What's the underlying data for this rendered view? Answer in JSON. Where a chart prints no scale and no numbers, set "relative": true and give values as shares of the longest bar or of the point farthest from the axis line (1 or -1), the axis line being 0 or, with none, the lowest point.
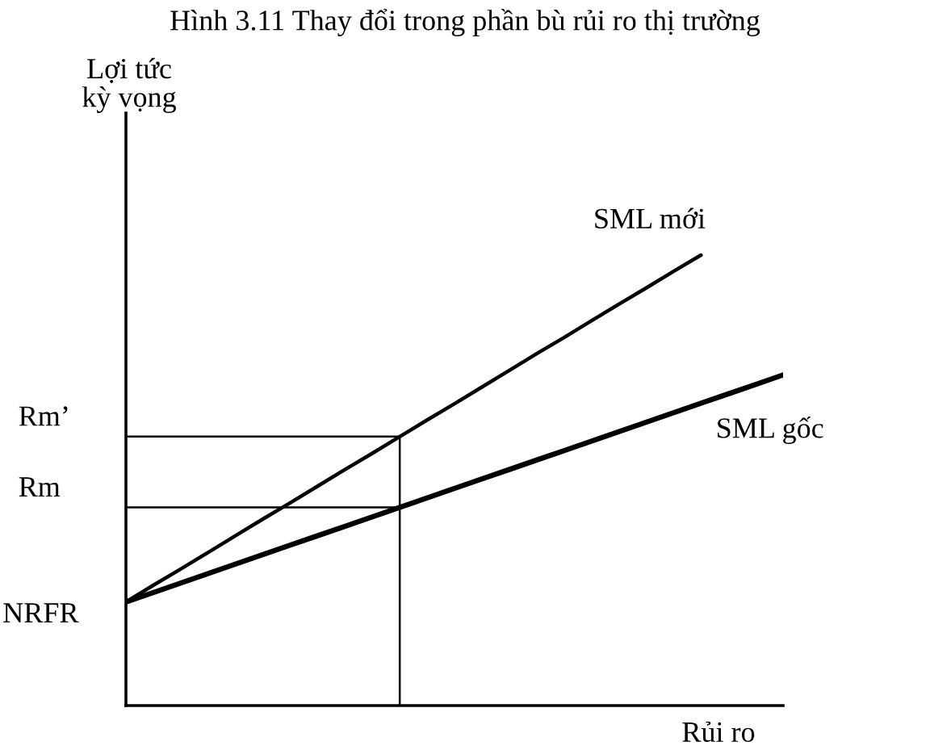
{
  "chart_data": {
    "type": "line",
    "relative": true,
    "title": "Hình 3.11 Thay đổi trong phần bù rủi ro thị trường",
    "xlabel": "Rủi ro",
    "categories": [
      null,
      null,
      null,
      null,
      null,
      null,
      null,
      null,
      null,
      null,
      null,
      null,
      null,
      null,
      null,
      null,
      null,
      null,
      null,
      null,
      null,
      null,
      null,
      null,
      null
    ],
    "series": [
      {
        "name": "SML mới",
        "color": "#000000",
        "values": [
          0.23,
          0.267,
          0.303,
          0.34,
          0.377,
          0.414,
          0.45,
          0.487,
          0.524,
          0.56,
          0.597,
          0.634,
          0.67,
          0.707,
          0.744,
          0.781,
          0.817,
          0.854,
          0.891,
          0.927,
          0.964,
          1.0,
          null,
          null,
          null
        ]
      },
      {
        "name": "SML gốc",
        "color": "#000000",
        "values": [
          0.23,
          0.251,
          0.272,
          0.293,
          0.314,
          0.335,
          0.356,
          0.377,
          0.398,
          0.419,
          0.44,
          0.461,
          0.482,
          0.503,
          0.524,
          0.545,
          0.566,
          0.587,
          0.608,
          0.629,
          0.65,
          0.671,
          0.692,
          0.713,
          0.734
        ]
      }
    ],
    "ref_lines": [
      {
        "axis": "y",
        "value": 0.597,
        "label": "Rm’"
      },
      {
        "axis": "y",
        "value": 0.44,
        "label": "Rm"
      }
    ],
    "annotations": [
      "Lợi tức\nkỳ vọng",
      "NRFR"
    ],
    "marker": "none",
    "line_style": "solid"
  }
}
